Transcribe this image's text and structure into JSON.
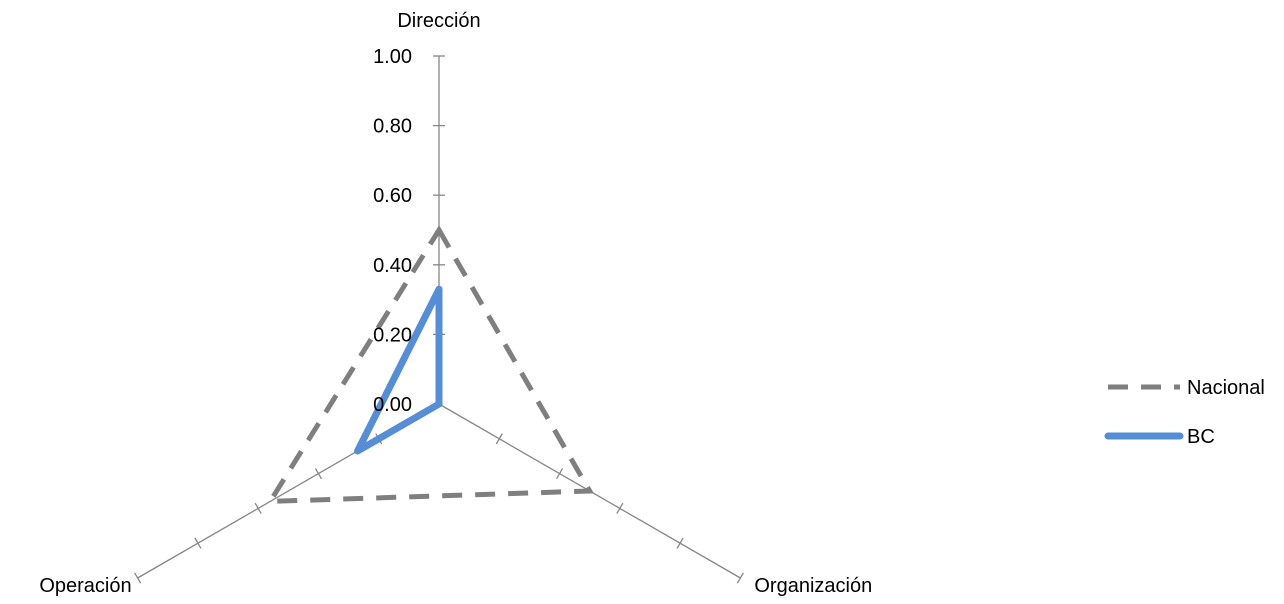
{
  "chart_data": {
    "type": "radar",
    "axes": [
      "Dirección",
      "Organización",
      "Operación"
    ],
    "tick_labels": [
      "0.00",
      "0.20",
      "0.40",
      "0.60",
      "0.80",
      "1.00"
    ],
    "range": [
      0,
      1
    ],
    "step": 0.2,
    "series": [
      {
        "name": "Nacional",
        "values": [
          0.5,
          0.5,
          0.56
        ],
        "color": "#7f7f7f",
        "style": "dashed"
      },
      {
        "name": "BC",
        "values": [
          0.33,
          0.0,
          0.27
        ],
        "color": "#558ed5",
        "style": "solid"
      }
    ],
    "legend_position": "right",
    "grid": false
  }
}
